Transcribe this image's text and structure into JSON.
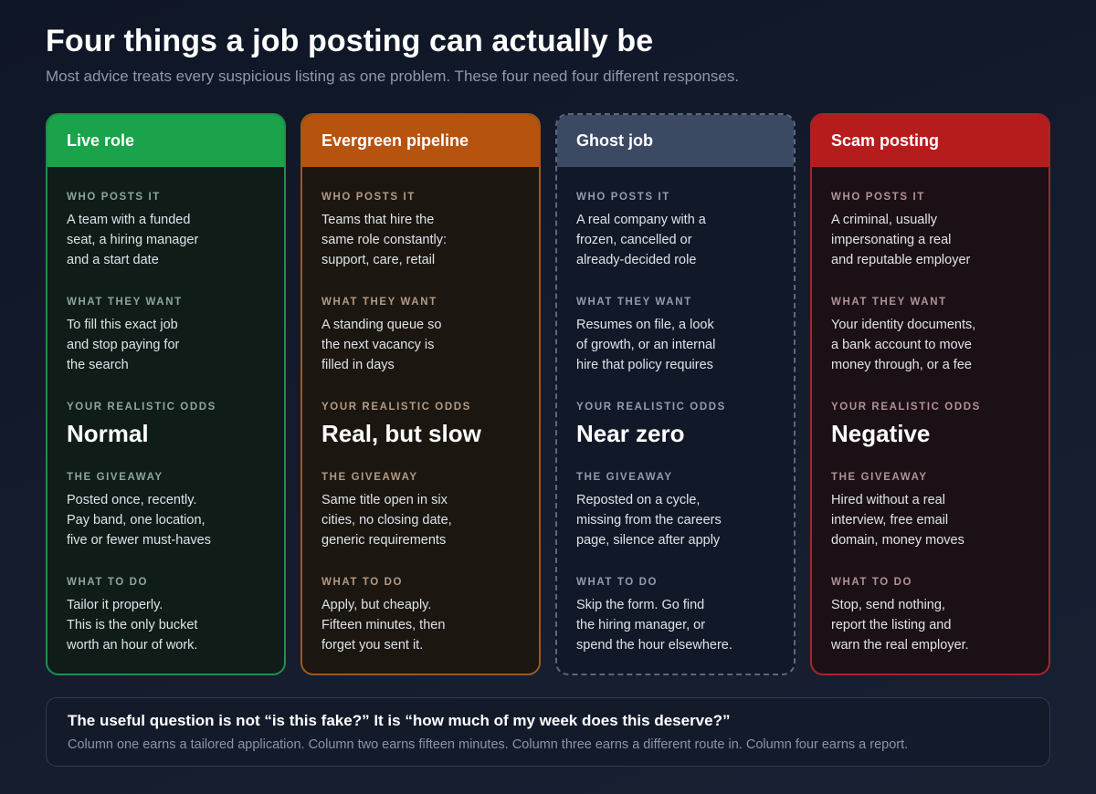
{
  "title": "Four things a job posting can actually be",
  "subtitle": "Most advice treats every suspicious listing as one problem. These four need four different responses.",
  "section_labels": {
    "who": "WHO POSTS IT",
    "want": "WHAT THEY WANT",
    "odds": "YOUR REALISTIC ODDS",
    "giveaway": "THE GIVEAWAY",
    "todo": "WHAT TO DO"
  },
  "columns": [
    {
      "heading": "Live role",
      "who": "A team with a funded\nseat, a hiring manager\nand a start date",
      "want": "To fill this exact job\nand stop paying for\nthe search",
      "odds": "Normal",
      "giveaway": "Posted once, recently.\nPay band, one location,\nfive or fewer must-haves",
      "todo": "Tailor it properly.\nThis is the only bucket\nworth an hour of work.",
      "colors": {
        "header": "#1aa34a",
        "border": "#1f8f4a",
        "bg": "#0f1c18",
        "label": "#8ea69a"
      }
    },
    {
      "heading": "Evergreen pipeline",
      "who": "Teams that hire the\nsame role constantly:\nsupport, care, retail",
      "want": "A standing queue so\nthe next vacancy is\nfilled in days",
      "odds": "Real, but slow",
      "giveaway": "Same title open in six\ncities, no closing date,\ngeneric requirements",
      "todo": "Apply, but cheaply.\nFifteen minutes, then\nforget you sent it.",
      "colors": {
        "header": "#b6530e",
        "border": "#9a5a1e",
        "bg": "#1b1610",
        "label": "#b29a85"
      }
    },
    {
      "heading": "Ghost job",
      "who": "A real company with a\nfrozen, cancelled or\nalready-decided role",
      "want": "Resumes on file, a look\nof growth, or an internal\nhire that policy requires",
      "odds": "Near zero",
      "giveaway": "Reposted on a cycle,\nmissing from the careers\npage, silence after apply",
      "todo": "Skip the form. Go find\nthe hiring manager, or\nspend the hour elsewhere.",
      "colors": {
        "header": "#3b4963",
        "border": "#5a6780",
        "bg": "#111827",
        "label": "#939cad"
      }
    },
    {
      "heading": "Scam posting",
      "who": "A criminal, usually\nimpersonating a real\nand reputable employer",
      "want": "Your identity documents,\na bank account to move\nmoney through, or a fee",
      "odds": "Negative",
      "giveaway": "Hired without a real\ninterview, free email\ndomain, money moves",
      "todo": "Stop, send nothing,\nreport the listing and\nwarn the real employer.",
      "colors": {
        "header": "#b71c1c",
        "border": "#a4262c",
        "bg": "#1b1016",
        "label": "#b09297"
      }
    }
  ],
  "footer": {
    "question": "The useful question is not “is this fake?” It is “how much of my week does this deserve?”",
    "note": "Column one earns a tailored application. Column two earns fifteen minutes. Column three earns a different route in. Column four earns a report."
  }
}
